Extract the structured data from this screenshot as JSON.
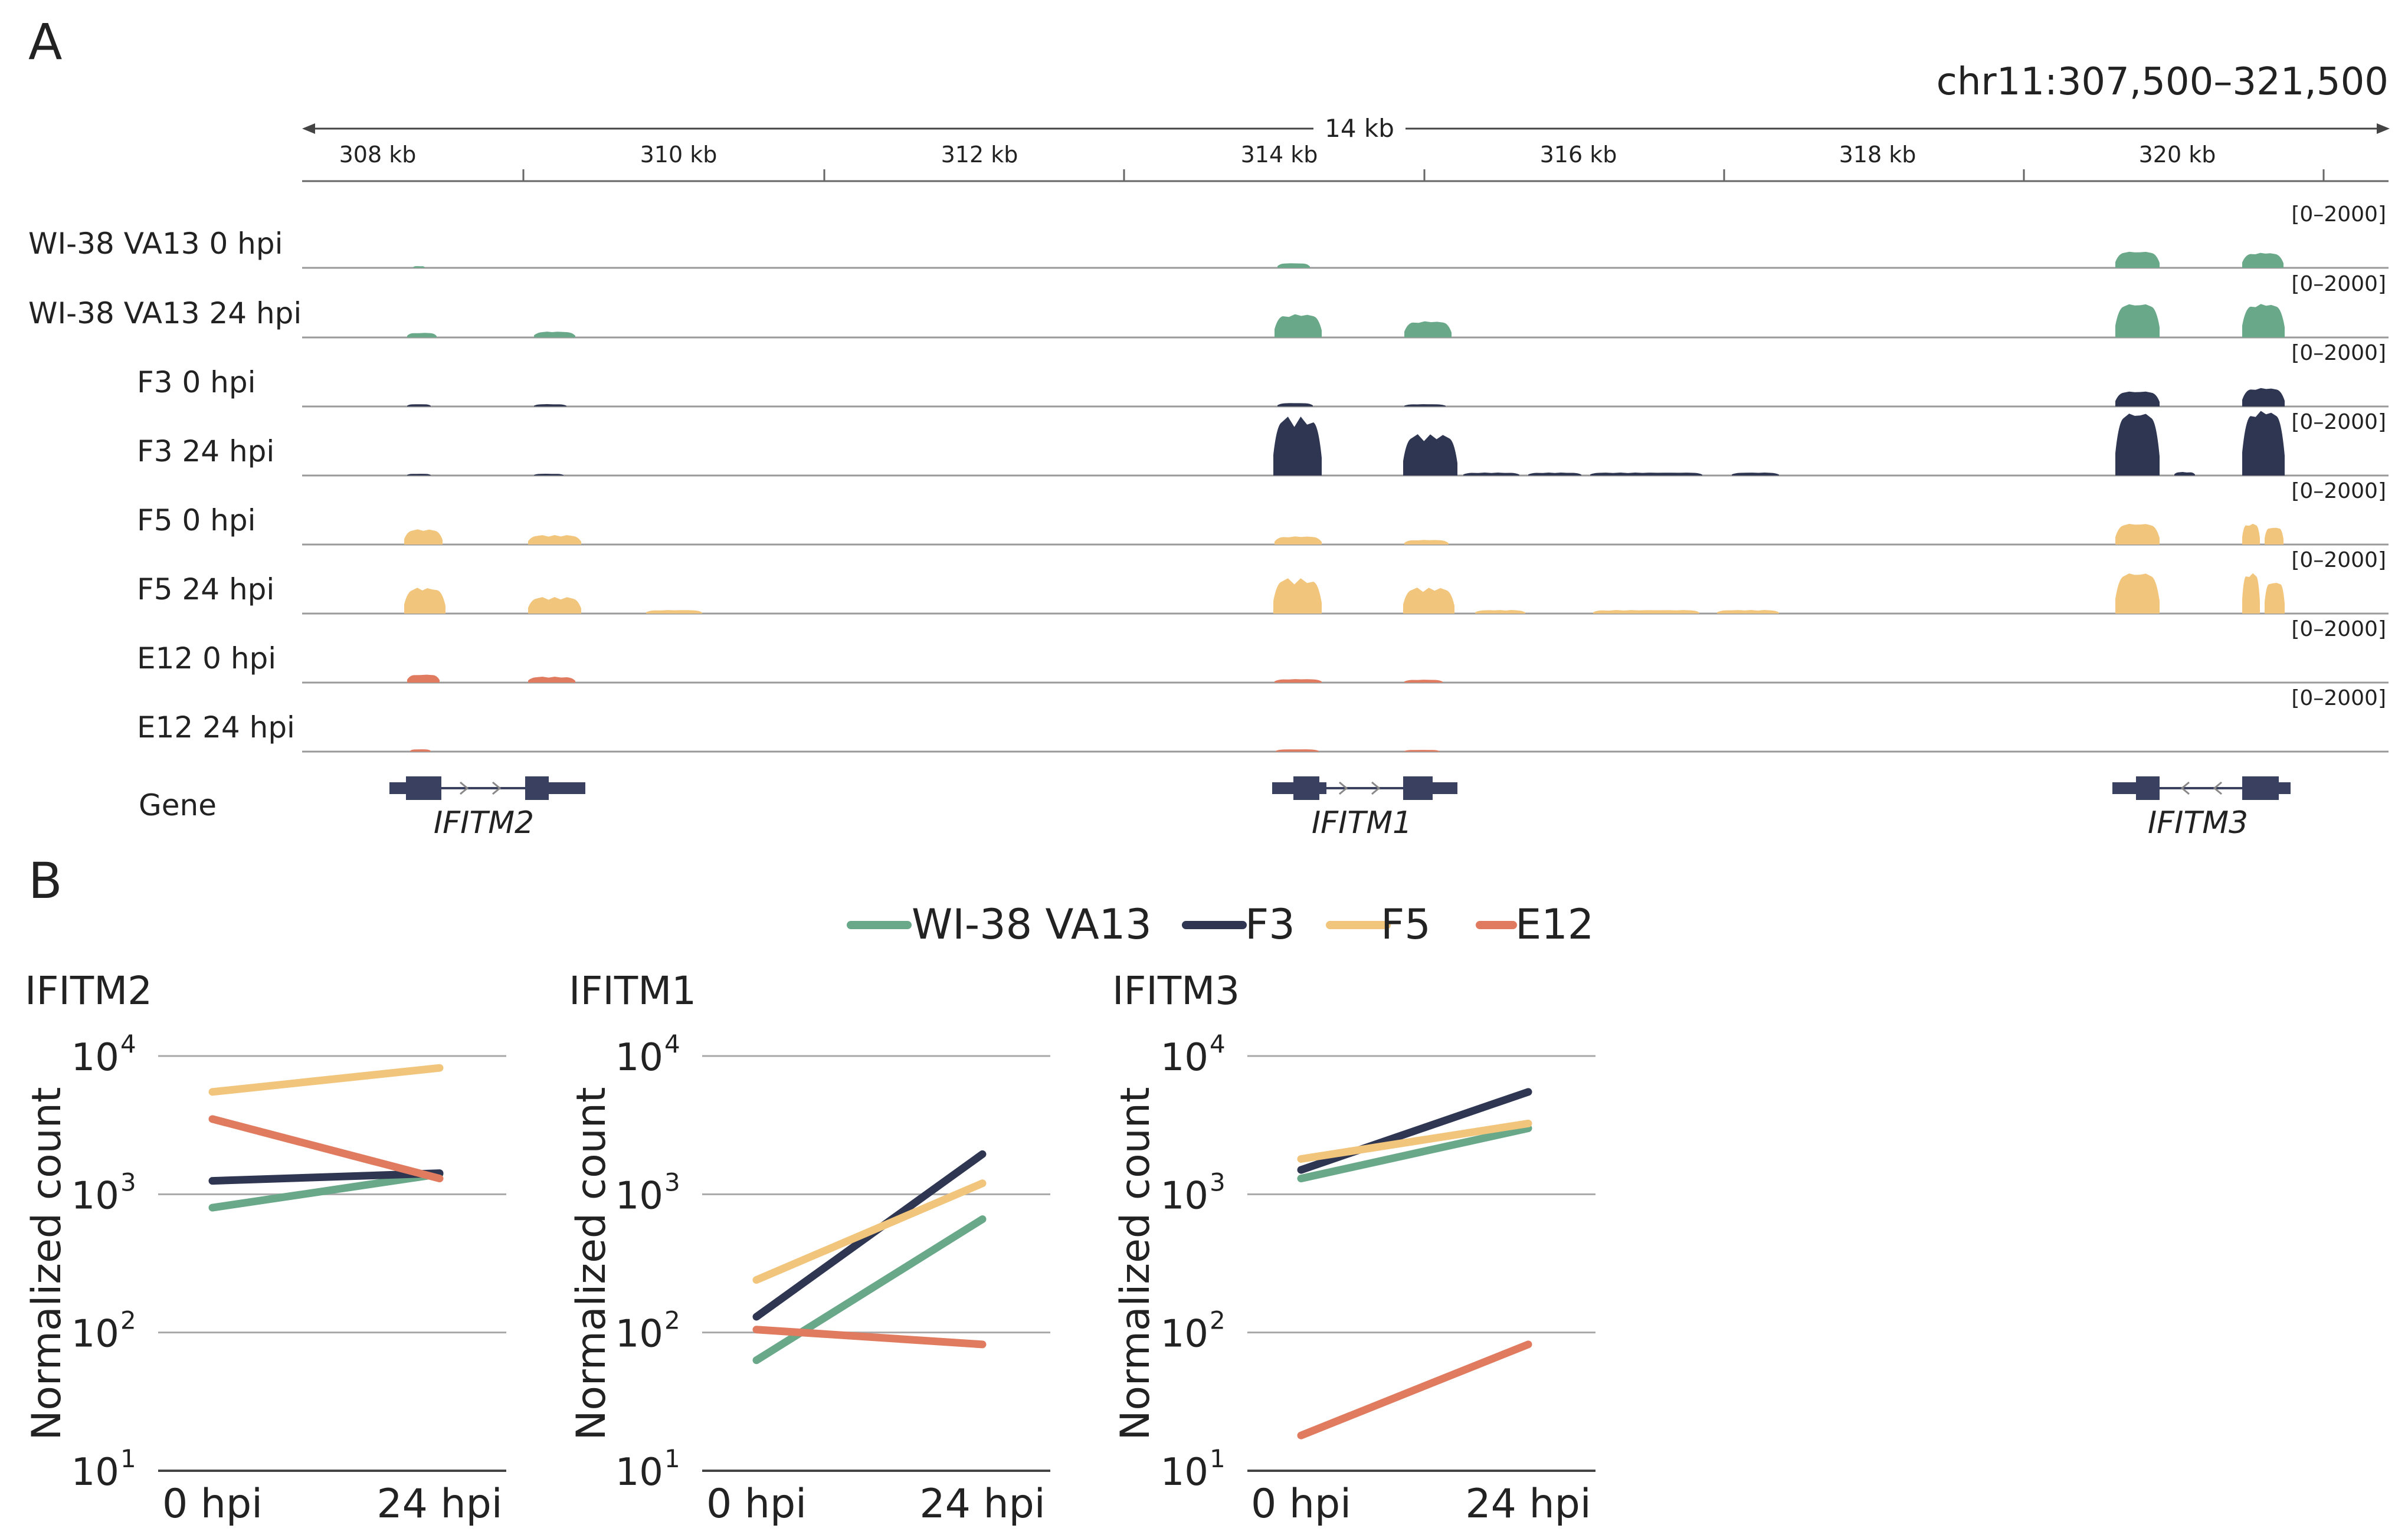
{
  "panel_a": {
    "label": "A",
    "locus": "chr11:307,500–321,500",
    "span_label": "14 kb",
    "ruler_ticks": [
      "308 kb",
      "310 kb",
      "312 kb",
      "314 kb",
      "316 kb",
      "318 kb",
      "320 kb"
    ],
    "track_range": "[0–2000]",
    "tracks": [
      {
        "label": "WI-38 VA13 0 hpi",
        "color": "#6aa88a"
      },
      {
        "label": "WI-38 VA13 24 hpi",
        "color": "#6aa88a"
      },
      {
        "label": "F3 0 hpi",
        "color": "#2f3652"
      },
      {
        "label": "F3 24 hpi",
        "color": "#2f3652"
      },
      {
        "label": "F5 0 hpi",
        "color": "#f2c57c"
      },
      {
        "label": "F5 24 hpi",
        "color": "#f2c57c"
      },
      {
        "label": "E12 0 hpi",
        "color": "#e07b5f"
      },
      {
        "label": "E12 24 hpi",
        "color": "#e07b5f"
      }
    ],
    "gene_track_label": "Gene",
    "genes": [
      "IFITM2",
      "IFITM1",
      "IFITM3"
    ]
  },
  "panel_b": {
    "label": "B",
    "legend": [
      {
        "name": "WI-38 VA13",
        "color": "#6aa88a"
      },
      {
        "name": "F3",
        "color": "#2f3652"
      },
      {
        "name": "F5",
        "color": "#f2c57c"
      },
      {
        "name": "E12",
        "color": "#e07b5f"
      }
    ]
  },
  "chart_data": [
    {
      "type": "line",
      "title": "IFITM2",
      "ylabel": "Normalized count",
      "yscale": "log",
      "ylim": [
        10,
        10000
      ],
      "yticks": [
        "10",
        "10",
        "10",
        "10"
      ],
      "yticks_exp": [
        "1",
        "2",
        "3",
        "4"
      ],
      "categories": [
        "0 hpi",
        "24 hpi"
      ],
      "series": [
        {
          "name": "WI-38 VA13",
          "values": [
            800,
            1400
          ]
        },
        {
          "name": "F3",
          "values": [
            1250,
            1420
          ]
        },
        {
          "name": "F5",
          "values": [
            5500,
            8200
          ]
        },
        {
          "name": "E12",
          "values": [
            3500,
            1300
          ]
        }
      ]
    },
    {
      "type": "line",
      "title": "IFITM1",
      "ylabel": "Normalized count",
      "yscale": "log",
      "ylim": [
        10,
        10000
      ],
      "yticks": [
        "10",
        "10",
        "10",
        "10"
      ],
      "yticks_exp": [
        "1",
        "2",
        "3",
        "4"
      ],
      "categories": [
        "0 hpi",
        "24 hpi"
      ],
      "series": [
        {
          "name": "WI-38 VA13",
          "values": [
            63,
            660
          ]
        },
        {
          "name": "F3",
          "values": [
            130,
            1950
          ]
        },
        {
          "name": "F5",
          "values": [
            240,
            1200
          ]
        },
        {
          "name": "E12",
          "values": [
            105,
            82
          ]
        }
      ]
    },
    {
      "type": "line",
      "title": "IFITM3",
      "ylabel": "Normalized count",
      "yscale": "log",
      "ylim": [
        10,
        10000
      ],
      "yticks": [
        "10",
        "10",
        "10",
        "10"
      ],
      "yticks_exp": [
        "1",
        "2",
        "3",
        "4"
      ],
      "categories": [
        "0 hpi",
        "24 hpi"
      ],
      "series": [
        {
          "name": "WI-38 VA13",
          "values": [
            1300,
            3000
          ]
        },
        {
          "name": "F3",
          "values": [
            1500,
            5500
          ]
        },
        {
          "name": "F5",
          "values": [
            1800,
            3250
          ]
        },
        {
          "name": "E12",
          "values": [
            18,
            82
          ]
        }
      ]
    }
  ]
}
